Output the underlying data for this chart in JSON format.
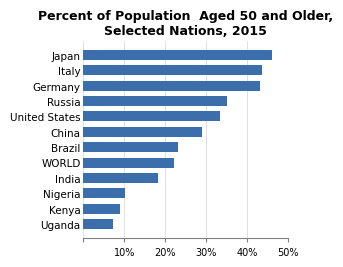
{
  "title": "Percent of Population  Aged 50 and Older,\nSelected Nations, 2015",
  "categories": [
    "Japan",
    "Italy",
    "Germany",
    "Russia",
    "United States",
    "China",
    "Brazil",
    "WORLD",
    "India",
    "Nigeria",
    "Kenya",
    "Uganda"
  ],
  "values": [
    0.46,
    0.435,
    0.432,
    0.351,
    0.334,
    0.29,
    0.232,
    0.222,
    0.183,
    0.101,
    0.09,
    0.072
  ],
  "bar_color": "#3B6EAA",
  "xlim": [
    0,
    0.5
  ],
  "xticks": [
    0.0,
    0.1,
    0.2,
    0.3,
    0.4,
    0.5
  ],
  "xtick_labels": [
    "",
    "10%",
    "20%",
    "30%",
    "40%",
    "50%"
  ],
  "background_color": "#FFFFFF",
  "title_fontsize": 9.0,
  "tick_fontsize": 7.0,
  "label_fontsize": 7.5
}
